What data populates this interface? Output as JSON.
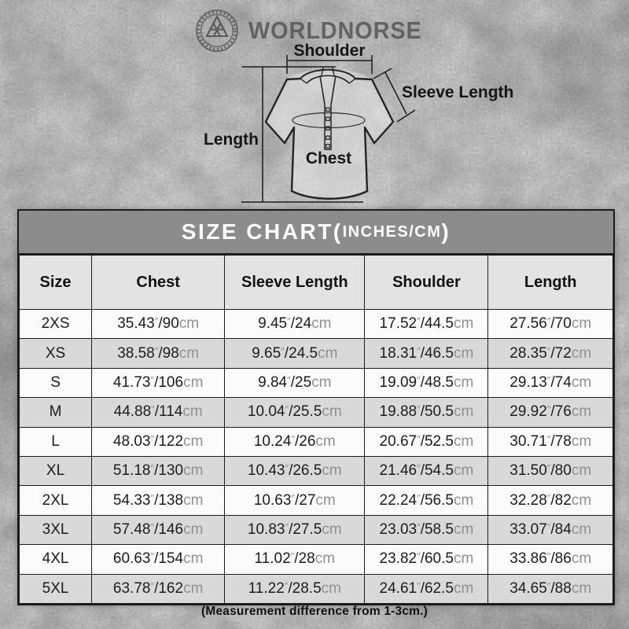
{
  "brand": {
    "name": "WORLDNORSE",
    "logo_icon": "valknut-emblem"
  },
  "diagram": {
    "labels": {
      "shoulder": "Shoulder",
      "sleeve_length": "Sleeve Length",
      "length": "Length",
      "chest": "Chest"
    }
  },
  "size_chart": {
    "title_main": "SIZE CHART",
    "title_paren_open": "(",
    "title_units": "INCHES/CM",
    "title_paren_close": ")",
    "columns": [
      "Size",
      "Chest",
      "Sleeve Length",
      "Shoulder",
      "Length"
    ],
    "rows": [
      {
        "size": "2XS",
        "chest": "35.43″/90cm",
        "sleeve": "9.45″/24cm",
        "shoulder": "17.52″/44.5cm",
        "length": "27.56″/70cm"
      },
      {
        "size": "XS",
        "chest": "38.58″/98cm",
        "sleeve": "9.65″/24.5cm",
        "shoulder": "18.31″/46.5cm",
        "length": "28.35″/72cm"
      },
      {
        "size": "S",
        "chest": "41.73″/106cm",
        "sleeve": "9.84″/25cm",
        "shoulder": "19.09″/48.5cm",
        "length": "29.13″/74cm"
      },
      {
        "size": "M",
        "chest": "44.88″/114cm",
        "sleeve": "10.04″/25.5cm",
        "shoulder": "19.88″/50.5cm",
        "length": "29.92″/76cm"
      },
      {
        "size": "L",
        "chest": "48.03″/122cm",
        "sleeve": "10.24″/26cm",
        "shoulder": "20.67″/52.5cm",
        "length": "30.71″/78cm"
      },
      {
        "size": "XL",
        "chest": "51.18″/130cm",
        "sleeve": "10.43″/26.5cm",
        "shoulder": "21.46″/54.5cm",
        "length": "31.50″/80cm"
      },
      {
        "size": "2XL",
        "chest": "54.33″/138cm",
        "sleeve": "10.63″/27cm",
        "shoulder": "22.24″/56.5cm",
        "length": "32.28″/82cm"
      },
      {
        "size": "3XL",
        "chest": "57.48″/146cm",
        "sleeve": "10.83″/27.5cm",
        "shoulder": "23.03″/58.5cm",
        "length": "33.07″/84cm"
      },
      {
        "size": "4XL",
        "chest": "60.63″/154cm",
        "sleeve": "11.02″/28cm",
        "shoulder": "23.82″/60.5cm",
        "length": "33.86″/86cm"
      },
      {
        "size": "5XL",
        "chest": "63.78″/162cm",
        "sleeve": "11.22″/28.5cm",
        "shoulder": "24.61″/62.5cm",
        "length": "34.65″/88cm"
      }
    ],
    "footnote": "(Measurement difference from 1-3cm.)"
  },
  "colors": {
    "title_band_bg": "#8c8c8c",
    "title_band_text": "#ffffff",
    "header_row_bg": "#e3e3e3",
    "row_bg": "#fbfbfb",
    "row_alt_bg": "#d9d9d9",
    "table_border": "#1c1c1c",
    "ink": "#1c1c1c",
    "unit_dim": "#909090",
    "bg_base": "#bdbdbd"
  }
}
